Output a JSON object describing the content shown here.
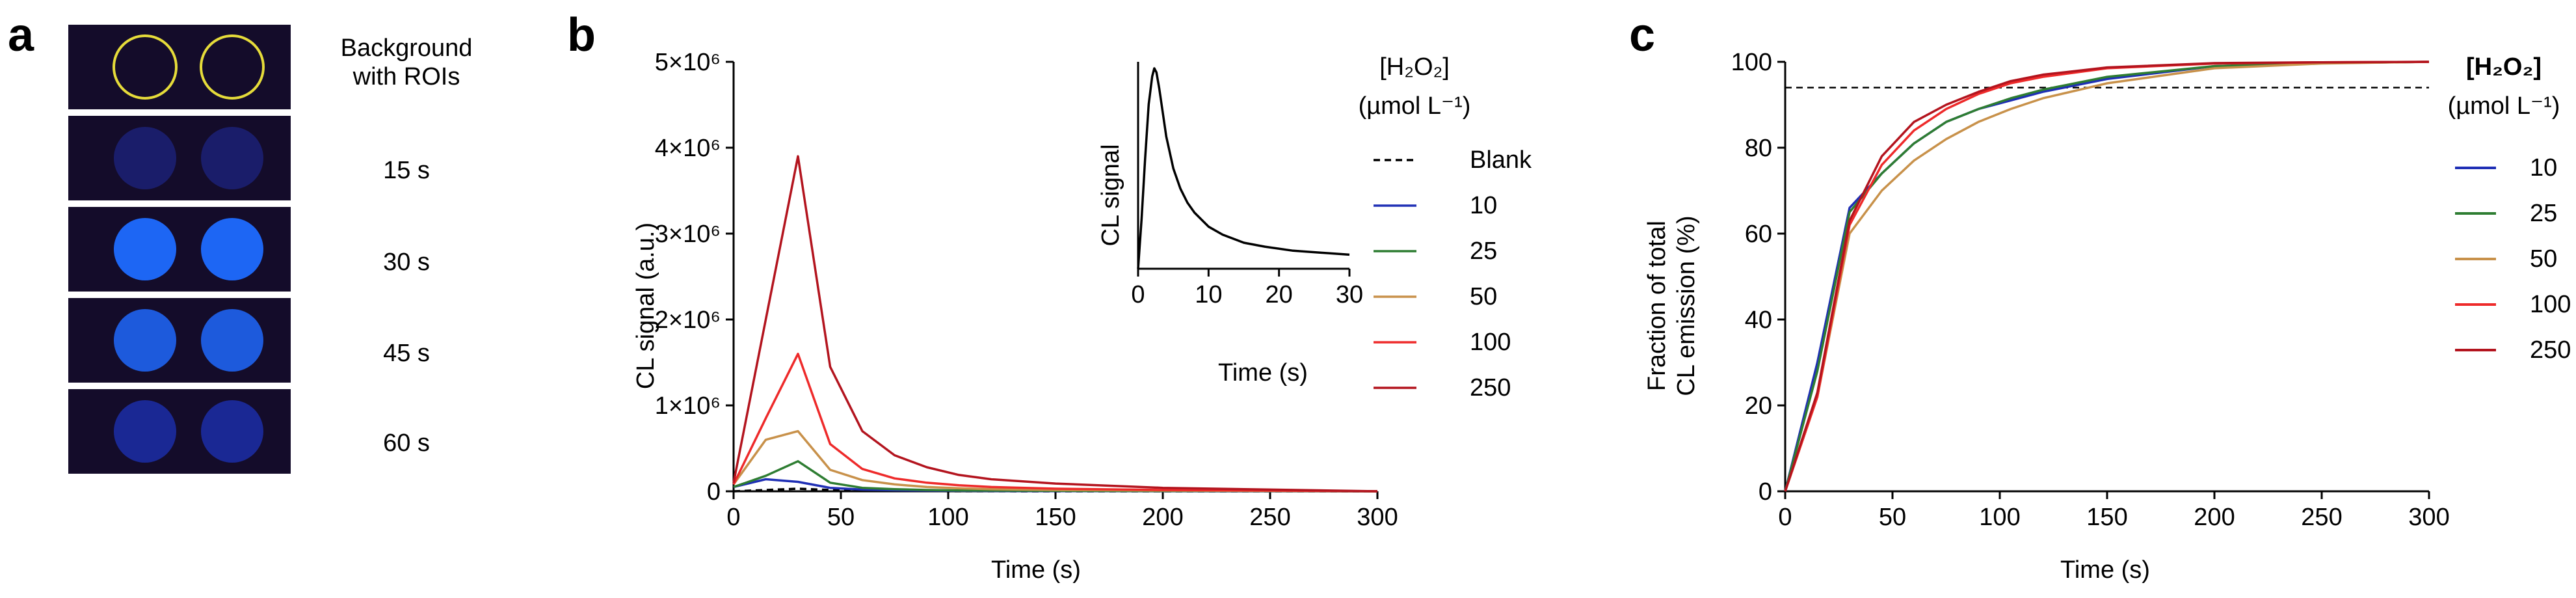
{
  "panel_a": {
    "letter": "a",
    "labels": [
      "Background",
      "with ROIs",
      "15 s",
      "30 s",
      "45 s",
      "60 s"
    ],
    "roi_color": "#e6dc3a",
    "tile_bg": "#140c2a",
    "spot_colors": [
      "#1a1f6e",
      "#1e6bff",
      "#1d5fe6",
      "#1a2a9a"
    ]
  },
  "panel_b": {
    "letter": "b",
    "legend_title_line1": "[H₂O₂]",
    "legend_title_line2": "(µmol L⁻¹)",
    "inset": {
      "ylabel": "CL signal",
      "xlabel": "Time (s)",
      "xticks": [
        "0",
        "10",
        "20",
        "30"
      ]
    }
  },
  "panel_c": {
    "letter": "c",
    "legend_title_line1": "[H₂O₂]",
    "legend_title_line2": "(µmol L⁻¹)"
  },
  "chart_data": [
    {
      "type": "line",
      "title": "",
      "xlabel": "Time (s)",
      "ylabel": "CL signal (a.u.)",
      "xlim": [
        0,
        300
      ],
      "ylim": [
        0,
        5000000
      ],
      "xticks": [
        0,
        50,
        100,
        150,
        200,
        250,
        300
      ],
      "yticks": [
        0,
        1000000,
        2000000,
        3000000,
        4000000,
        5000000
      ],
      "ytick_labels": [
        "0",
        "1×10⁶",
        "2×10⁶",
        "3×10⁶",
        "4×10⁶",
        "5×10⁶"
      ],
      "x": [
        0,
        15,
        30,
        45,
        60,
        75,
        90,
        105,
        120,
        150,
        200,
        250,
        300
      ],
      "series": [
        {
          "name": "Blank",
          "color": "#000000",
          "dashed": true,
          "values": [
            0,
            15000,
            30000,
            15000,
            5000,
            3000,
            2000,
            1000,
            1000,
            0,
            0,
            0,
            0
          ]
        },
        {
          "name": "10",
          "color": "#1f2fb5",
          "dashed": false,
          "values": [
            50000,
            140000,
            110000,
            40000,
            20000,
            12000,
            8000,
            5000,
            4000,
            2000,
            1000,
            0,
            0
          ]
        },
        {
          "name": "25",
          "color": "#2e7d32",
          "dashed": false,
          "values": [
            50000,
            180000,
            350000,
            100000,
            40000,
            25000,
            15000,
            10000,
            8000,
            5000,
            3000,
            2000,
            0
          ]
        },
        {
          "name": "50",
          "color": "#c8914a",
          "dashed": false,
          "values": [
            80000,
            600000,
            700000,
            250000,
            130000,
            80000,
            50000,
            35000,
            25000,
            15000,
            8000,
            4000,
            0
          ]
        },
        {
          "name": "100",
          "color": "#ee2a2a",
          "dashed": false,
          "values": [
            80000,
            850000,
            1600000,
            550000,
            260000,
            150000,
            100000,
            70000,
            50000,
            30000,
            15000,
            8000,
            0
          ]
        },
        {
          "name": "250",
          "color": "#b3141e",
          "dashed": false,
          "values": [
            100000,
            2000000,
            3900000,
            1450000,
            700000,
            420000,
            280000,
            190000,
            140000,
            90000,
            40000,
            20000,
            0
          ]
        }
      ],
      "inset": {
        "type": "line",
        "xlabel": "Time (s)",
        "ylabel": "CL signal",
        "xlim": [
          0,
          30
        ],
        "x": [
          0,
          0.5,
          1,
          1.5,
          2,
          2.3,
          2.6,
          3,
          3.5,
          4,
          5,
          6,
          7,
          8,
          10,
          12,
          15,
          18,
          22,
          26,
          30
        ],
        "values": [
          0,
          0.25,
          0.55,
          0.82,
          0.96,
          1.0,
          0.98,
          0.9,
          0.78,
          0.66,
          0.5,
          0.4,
          0.33,
          0.28,
          0.21,
          0.17,
          0.13,
          0.11,
          0.09,
          0.08,
          0.07
        ]
      }
    },
    {
      "type": "line",
      "title": "",
      "xlabel": "Time (s)",
      "ylabel_line1": "Fraction of total",
      "ylabel_line2": "CL emission (%)",
      "xlim": [
        0,
        300
      ],
      "ylim": [
        0,
        100
      ],
      "xticks": [
        0,
        50,
        100,
        150,
        200,
        250,
        300
      ],
      "yticks": [
        0,
        20,
        40,
        60,
        80,
        100
      ],
      "reference_line": 94,
      "series": [
        {
          "name": "10",
          "color": "#1f2fb5",
          "x": [
            0,
            15,
            30,
            45,
            60,
            75,
            90,
            105,
            120,
            150,
            200,
            250,
            300
          ],
          "values": [
            0,
            30,
            66,
            74,
            81,
            86,
            89,
            91,
            93,
            96,
            99,
            99.7,
            100
          ]
        },
        {
          "name": "25",
          "color": "#2e7d32",
          "x": [
            0,
            15,
            30,
            45,
            60,
            75,
            90,
            105,
            120,
            150,
            200,
            250,
            300
          ],
          "values": [
            0,
            28,
            65,
            74,
            81,
            86,
            89,
            91.5,
            93.5,
            96.5,
            99,
            99.7,
            100
          ]
        },
        {
          "name": "50",
          "color": "#c8914a",
          "x": [
            0,
            15,
            30,
            45,
            60,
            75,
            90,
            105,
            120,
            150,
            200,
            250,
            300
          ],
          "values": [
            0,
            22,
            60,
            70,
            77,
            82,
            86,
            89,
            91.5,
            95,
            98.5,
            99.6,
            100
          ]
        },
        {
          "name": "100",
          "color": "#ee2a2a",
          "x": [
            0,
            15,
            30,
            45,
            60,
            75,
            90,
            105,
            120,
            150,
            200,
            250,
            300
          ],
          "values": [
            0,
            22,
            62,
            76,
            84,
            89,
            92.5,
            95,
            96.5,
            98.5,
            99.6,
            99.9,
            100
          ]
        },
        {
          "name": "250",
          "color": "#b3141e",
          "x": [
            0,
            15,
            30,
            45,
            60,
            75,
            90,
            105,
            120,
            150,
            200,
            250,
            300
          ],
          "values": [
            0,
            23,
            63,
            78,
            86,
            90,
            93,
            95.5,
            97,
            98.7,
            99.7,
            99.9,
            100
          ]
        }
      ]
    }
  ]
}
